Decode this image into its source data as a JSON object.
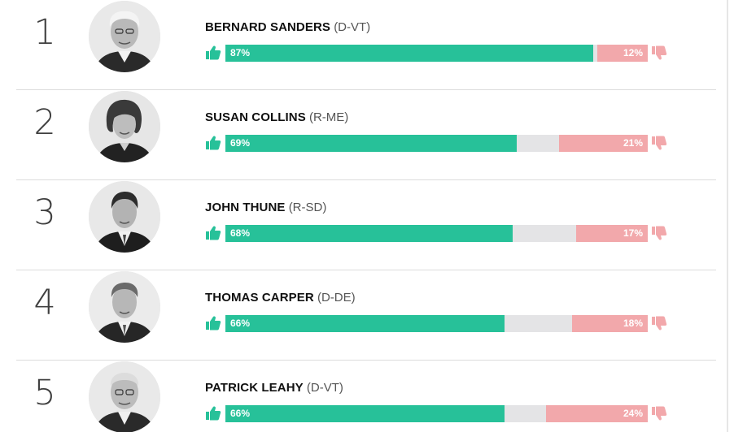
{
  "colors": {
    "approve": "#27c199",
    "disapprove": "#f2a8ab",
    "undecided": "#e4e4e6",
    "divider": "#dcdcdc"
  },
  "rows": [
    {
      "rank": "1",
      "name": "BERNARD SANDERS",
      "party": "(D-VT)",
      "approve": 87,
      "disapprove": 12,
      "approve_label": "87%",
      "disapprove_label": "12%",
      "avatar_icon": "senator-portrait-photo"
    },
    {
      "rank": "2",
      "name": "SUSAN COLLINS",
      "party": "(R-ME)",
      "approve": 69,
      "disapprove": 21,
      "approve_label": "69%",
      "disapprove_label": "21%",
      "avatar_icon": "senator-portrait-photo"
    },
    {
      "rank": "3",
      "name": "JOHN THUNE",
      "party": "(R-SD)",
      "approve": 68,
      "disapprove": 17,
      "approve_label": "68%",
      "disapprove_label": "17%",
      "avatar_icon": "senator-portrait-photo"
    },
    {
      "rank": "4",
      "name": "THOMAS CARPER",
      "party": "(D-DE)",
      "approve": 66,
      "disapprove": 18,
      "approve_label": "66%",
      "disapprove_label": "18%",
      "avatar_icon": "senator-portrait-photo"
    },
    {
      "rank": "5",
      "name": "PATRICK LEAHY",
      "party": "(D-VT)",
      "approve": 66,
      "disapprove": 24,
      "approve_label": "66%",
      "disapprove_label": "24%",
      "avatar_icon": "senator-portrait-photo"
    }
  ]
}
